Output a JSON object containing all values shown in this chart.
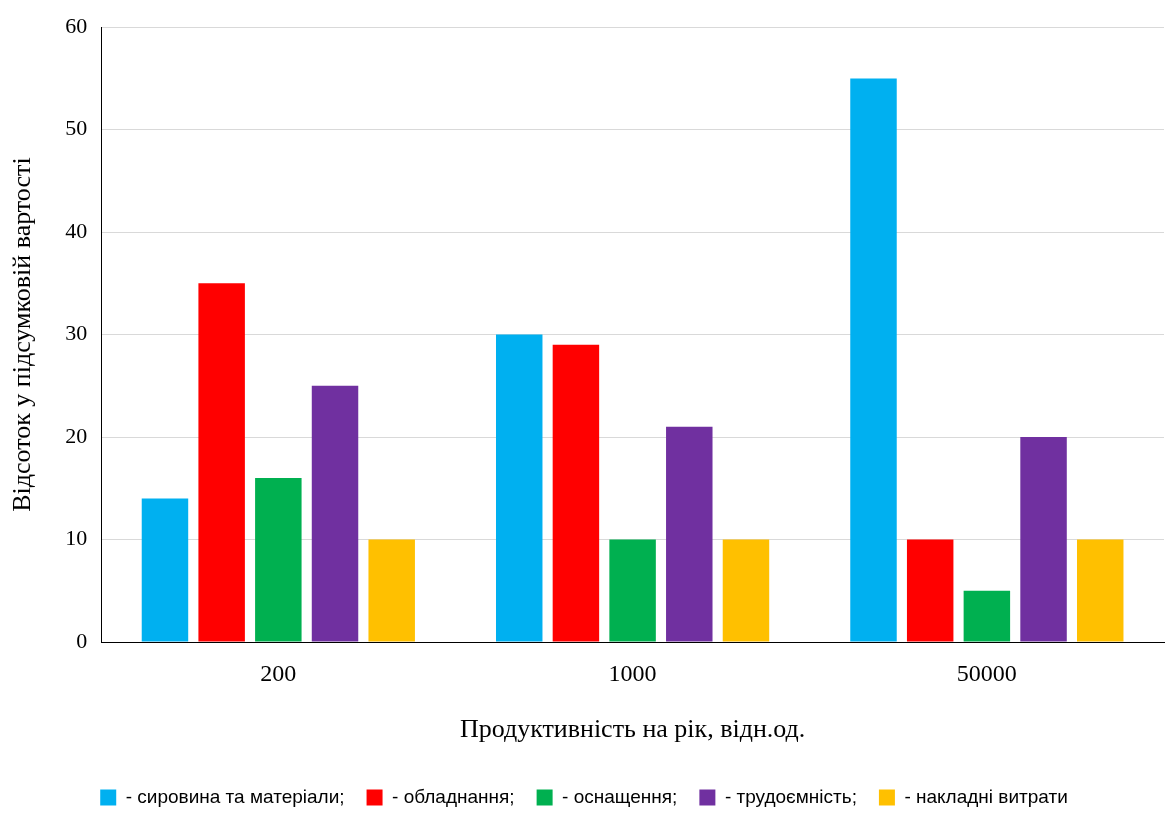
{
  "chart_data": {
    "type": "bar",
    "xlabel": "Продуктивність на рік, відн.од.",
    "ylabel": "Відсоток у підсумковій вартості",
    "categories": [
      "200",
      "1000",
      "50000"
    ],
    "series": [
      {
        "name": "- сировина та матеріали;",
        "color": "#00b0f0",
        "values": [
          14,
          30,
          55
        ]
      },
      {
        "name": "- обладнання;",
        "color": "#ff0000",
        "values": [
          35,
          29,
          10
        ]
      },
      {
        "name": "- оснащення;",
        "color": "#00b050",
        "values": [
          16,
          10,
          5
        ]
      },
      {
        "name": "- трудоємність;",
        "color": "#7030a0",
        "values": [
          25,
          21,
          20
        ]
      },
      {
        "name": "- накладні витрати",
        "color": "#ffc000",
        "values": [
          10,
          10,
          10
        ]
      }
    ],
    "ylim": [
      0,
      60
    ],
    "yticks": [
      0,
      10,
      20,
      30,
      40,
      50,
      60
    ],
    "grid": "y",
    "legend": "bottom"
  }
}
